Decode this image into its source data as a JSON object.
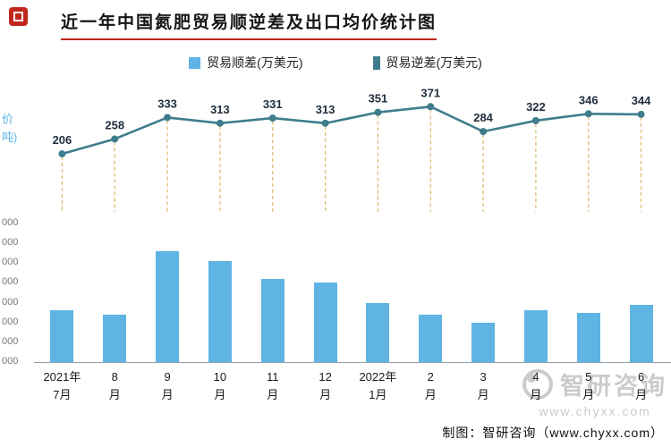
{
  "header": {
    "title": "近一年中国氮肥贸易顺逆差及出口均价统计图",
    "accent_color": "#c0261c"
  },
  "legend": {
    "items": [
      {
        "label": "贸易顺差(万美元)",
        "color": "#5fb4e3"
      },
      {
        "label": "贸易逆差(万美元)",
        "color": "#3f7d8c"
      }
    ]
  },
  "left_axis": {
    "fragments": [
      "价",
      "吨)"
    ],
    "color": "#5fb4e3"
  },
  "y_axis": {
    "tick_fragments": [
      "000",
      "000",
      "000",
      "000",
      "000",
      "000",
      "000",
      "000"
    ]
  },
  "chart_data": {
    "type": "bar",
    "title": "近一年中国氮肥贸易顺逆差及出口均价统计图",
    "legend_position": "top",
    "categories_lines": [
      [
        "2021年",
        "7月"
      ],
      [
        "8",
        "月"
      ],
      [
        "9",
        "月"
      ],
      [
        "10",
        "月"
      ],
      [
        "11",
        "月"
      ],
      [
        "12",
        "月"
      ],
      [
        "2022年",
        "1月"
      ],
      [
        "2",
        "月"
      ],
      [
        "3",
        "月"
      ],
      [
        "4",
        "月"
      ],
      [
        "5",
        "月"
      ],
      [
        "6",
        "月"
      ]
    ],
    "bar_series": {
      "name": "贸易顺差(万美元)",
      "color": "#5fb4e3",
      "values": [
        26000,
        24000,
        56000,
        51000,
        42000,
        40000,
        30000,
        24000,
        20000,
        26000,
        25000,
        29000
      ],
      "ylim": [
        0,
        70000
      ]
    },
    "line_series": {
      "name": "贸易逆差(万美元)",
      "color": "#3f7d8c",
      "values": [
        206,
        258,
        333,
        313,
        331,
        313,
        351,
        371,
        284,
        322,
        346,
        344
      ],
      "ylim": [
        150,
        400
      ]
    },
    "drop_line_color": "#ddb86a",
    "value_label_color": "#1f2d3d",
    "grid": false
  },
  "watermark": {
    "brand": "智研咨询",
    "url": "www.chyxx.com",
    "color": "#c9c9c9"
  },
  "footer": {
    "credit": "制图：智研咨询（www.chyxx.com）"
  }
}
